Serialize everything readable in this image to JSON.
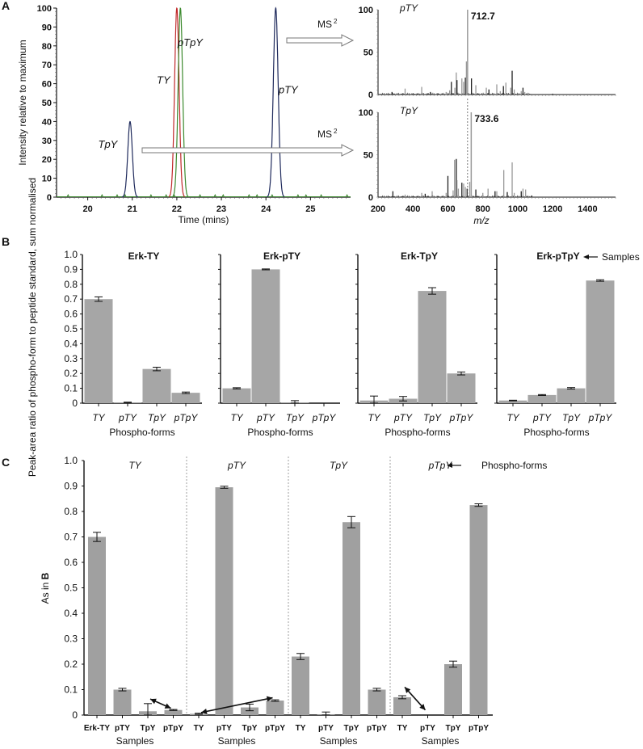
{
  "chart_data": [
    {
      "id": "A-chromatogram",
      "panel_label": "A",
      "type": "line",
      "title": "",
      "xlabel": "Time (mins)",
      "ylabel": "Intensity relative to maximum",
      "xlim": [
        19.3,
        25.9
      ],
      "ylim": [
        0,
        100
      ],
      "xticks": [
        20,
        21,
        22,
        23,
        24,
        25
      ],
      "yticks": [
        0,
        10,
        20,
        30,
        40,
        50,
        60,
        70,
        80,
        90,
        100
      ],
      "series": [
        {
          "name": "TpY",
          "color": "#1f2a5c",
          "peaks": [
            {
              "x": 20.95,
              "height": 40,
              "width": 0.13
            }
          ]
        },
        {
          "name": "pTY",
          "color": "#1f2a5c",
          "peaks": [
            {
              "x": 24.22,
              "height": 100,
              "width": 0.14
            }
          ]
        },
        {
          "name": "TY",
          "color": "#c0282a",
          "peaks": [
            {
              "x": 22.0,
              "height": 100,
              "width": 0.13
            }
          ]
        },
        {
          "name": "pTpY",
          "color": "#3c8a2e",
          "peaks": [
            {
              "x": 22.08,
              "height": 100,
              "width": 0.13
            }
          ]
        }
      ],
      "annotations": [
        {
          "text": "TpY",
          "x": 20.45,
          "y": 26
        },
        {
          "text": "TY",
          "x": 21.7,
          "y": 60
        },
        {
          "text": "pTpY",
          "x": 22.3,
          "y": 80
        },
        {
          "text": "pTY",
          "x": 24.5,
          "y": 55
        }
      ],
      "arrows": [
        {
          "label": "MS",
          "superscript": "2",
          "from": "pTY peak",
          "to": "pTY spectrum"
        },
        {
          "label": "MS",
          "superscript": "2",
          "from": "TpY peak",
          "to": "TpY spectrum"
        }
      ]
    },
    {
      "id": "A-spectrum-pTY",
      "type": "bar",
      "title": "pTY",
      "xlabel": "",
      "ylabel": "",
      "xlim": [
        200,
        1560
      ],
      "ylim": [
        0,
        100
      ],
      "yticks": [
        0,
        50,
        100
      ],
      "peak_label": "712.7",
      "peaks": [
        {
          "mz": 280,
          "i": 3
        },
        {
          "mz": 355,
          "i": 7
        },
        {
          "mz": 450,
          "i": 9
        },
        {
          "mz": 500,
          "i": 3
        },
        {
          "mz": 590,
          "i": 3
        },
        {
          "mz": 610,
          "i": 5
        },
        {
          "mz": 620,
          "i": 15
        },
        {
          "mz": 640,
          "i": 8
        },
        {
          "mz": 648,
          "i": 26
        },
        {
          "mz": 652,
          "i": 17
        },
        {
          "mz": 680,
          "i": 19
        },
        {
          "mz": 690,
          "i": 15
        },
        {
          "mz": 700,
          "i": 20
        },
        {
          "mz": 706,
          "i": 39
        },
        {
          "mz": 712.7,
          "i": 100
        },
        {
          "mz": 735,
          "i": 19
        },
        {
          "mz": 760,
          "i": 11
        },
        {
          "mz": 820,
          "i": 8
        },
        {
          "mz": 835,
          "i": 6
        },
        {
          "mz": 880,
          "i": 12
        },
        {
          "mz": 900,
          "i": 4
        },
        {
          "mz": 918,
          "i": 10
        },
        {
          "mz": 932,
          "i": 14
        },
        {
          "mz": 960,
          "i": 8
        },
        {
          "mz": 968,
          "i": 28
        },
        {
          "mz": 980,
          "i": 6
        },
        {
          "mz": 1020,
          "i": 4
        },
        {
          "mz": 1030,
          "i": 8
        },
        {
          "mz": 1040,
          "i": 3
        },
        {
          "mz": 1060,
          "i": 2
        },
        {
          "mz": 1200,
          "i": 1
        },
        {
          "mz": 1320,
          "i": 1
        }
      ]
    },
    {
      "id": "A-spectrum-TpY",
      "type": "bar",
      "title": "TpY",
      "xlabel": "m/z",
      "ylabel": "",
      "xlim": [
        200,
        1560
      ],
      "ylim": [
        0,
        100
      ],
      "xticks": [
        200,
        400,
        600,
        800,
        1000,
        1200,
        1400
      ],
      "yticks": [
        0,
        50,
        100
      ],
      "peak_label": "733.6",
      "reference_line_mz": 712.7,
      "peaks": [
        {
          "mz": 285,
          "i": 7
        },
        {
          "mz": 355,
          "i": 3
        },
        {
          "mz": 450,
          "i": 5
        },
        {
          "mz": 470,
          "i": 4
        },
        {
          "mz": 510,
          "i": 7
        },
        {
          "mz": 590,
          "i": 5
        },
        {
          "mz": 600,
          "i": 25
        },
        {
          "mz": 630,
          "i": 8
        },
        {
          "mz": 638,
          "i": 44
        },
        {
          "mz": 648,
          "i": 45
        },
        {
          "mz": 652,
          "i": 20
        },
        {
          "mz": 660,
          "i": 10
        },
        {
          "mz": 680,
          "i": 17
        },
        {
          "mz": 690,
          "i": 16
        },
        {
          "mz": 700,
          "i": 12
        },
        {
          "mz": 710,
          "i": 10
        },
        {
          "mz": 725,
          "i": 18
        },
        {
          "mz": 733.6,
          "i": 100
        },
        {
          "mz": 760,
          "i": 9
        },
        {
          "mz": 800,
          "i": 5
        },
        {
          "mz": 830,
          "i": 10
        },
        {
          "mz": 870,
          "i": 7
        },
        {
          "mz": 880,
          "i": 7
        },
        {
          "mz": 920,
          "i": 32
        },
        {
          "mz": 940,
          "i": 6
        },
        {
          "mz": 968,
          "i": 41
        },
        {
          "mz": 980,
          "i": 5
        },
        {
          "mz": 1020,
          "i": 7
        },
        {
          "mz": 1030,
          "i": 10
        },
        {
          "mz": 1045,
          "i": 9
        },
        {
          "mz": 1080,
          "i": 2
        },
        {
          "mz": 1200,
          "i": 1
        }
      ]
    },
    {
      "id": "B",
      "panel_label": "B",
      "type": "bar",
      "ylabel": "Peak-area ratio of phospho-form to peptide standard, sum normalised",
      "ylim": [
        0,
        1.0
      ],
      "yticks": [
        "0",
        "0.1",
        "0.2",
        "0.3",
        "0.4",
        "0.5",
        "0.6",
        "0.7",
        "0.8",
        "0.9",
        "1.0"
      ],
      "samples_annotation": "Samples",
      "subplots": [
        {
          "title": "Erk-TY",
          "xlabel": "Phospho-forms",
          "categories": [
            "TY",
            "pTY",
            "TpY",
            "pTpY"
          ],
          "values": [
            0.7,
            0.005,
            0.23,
            0.07
          ],
          "errors": [
            0.015,
            0.002,
            0.012,
            0.005
          ]
        },
        {
          "title": "Erk-pTY",
          "xlabel": "Phospho-forms",
          "categories": [
            "TY",
            "pTY",
            "TpY",
            "pTpY"
          ],
          "values": [
            0.1,
            0.9,
            0.005,
            0.0
          ],
          "errors": [
            0.004,
            0.003,
            0.012,
            0.0
          ]
        },
        {
          "title": "Erk-TpY",
          "xlabel": "Phospho-forms",
          "categories": [
            "TY",
            "pTY",
            "TpY",
            "pTpY"
          ],
          "values": [
            0.018,
            0.03,
            0.755,
            0.2
          ],
          "errors": [
            0.03,
            0.015,
            0.022,
            0.01
          ]
        },
        {
          "title": "Erk-pTpY",
          "xlabel": "Phospho-forms",
          "categories": [
            "TY",
            "pTY",
            "TpY",
            "pTpY"
          ],
          "values": [
            0.018,
            0.055,
            0.1,
            0.825
          ],
          "errors": [
            0.002,
            0.003,
            0.005,
            0.005
          ]
        }
      ]
    },
    {
      "id": "C",
      "panel_label": "C",
      "type": "bar",
      "ylabel_prefix": "As in ",
      "ylabel_bold": "B",
      "ylim": [
        0,
        1.0
      ],
      "yticks": [
        "0",
        "0.1",
        "0.2",
        "0.3",
        "0.4",
        "0.5",
        "0.6",
        "0.7",
        "0.8",
        "0.9",
        "1.0"
      ],
      "phospho_forms_annotation": "Phospho-forms",
      "groups": [
        {
          "title": "TY",
          "xlabel": "Samples",
          "categories": [
            "Erk-TY",
            "pTY",
            "TpY",
            "pTpY"
          ],
          "values": [
            0.7,
            0.1,
            0.015,
            0.02
          ],
          "errors": [
            0.018,
            0.005,
            0.03,
            0.002
          ]
        },
        {
          "title": "pTY",
          "xlabel": "Samples",
          "categories": [
            "TY",
            "pTY",
            "TpY",
            "pTpY"
          ],
          "values": [
            0.005,
            0.895,
            0.03,
            0.057
          ],
          "errors": [
            0.002,
            0.004,
            0.013,
            0.003
          ]
        },
        {
          "title": "TpY",
          "xlabel": "Samples",
          "categories": [
            "TY",
            "pTY",
            "TpY",
            "pTpY"
          ],
          "values": [
            0.23,
            0.002,
            0.758,
            0.1
          ],
          "errors": [
            0.012,
            0.01,
            0.022,
            0.005
          ]
        },
        {
          "title": "pTpY",
          "xlabel": "Samples",
          "categories": [
            "TY",
            "pTY",
            "TpY",
            "pTpY"
          ],
          "values": [
            0.07,
            0.0,
            0.2,
            0.825
          ],
          "errors": [
            0.006,
            0.0,
            0.012,
            0.005
          ]
        }
      ],
      "double_arrows": [
        {
          "from": {
            "group": 0,
            "bar": 2,
            "value": 0.063
          },
          "to": {
            "group": 0,
            "bar": 3,
            "value": 0.027
          }
        },
        {
          "from": {
            "group": 1,
            "bar": 0,
            "value": 0.01
          },
          "to": {
            "group": 1,
            "bar": 3,
            "value": 0.068
          }
        },
        {
          "from": {
            "group": 3,
            "bar": 0,
            "value": 0.11
          },
          "to": {
            "group": 3,
            "bar": 1,
            "value": 0.02
          }
        }
      ]
    }
  ]
}
